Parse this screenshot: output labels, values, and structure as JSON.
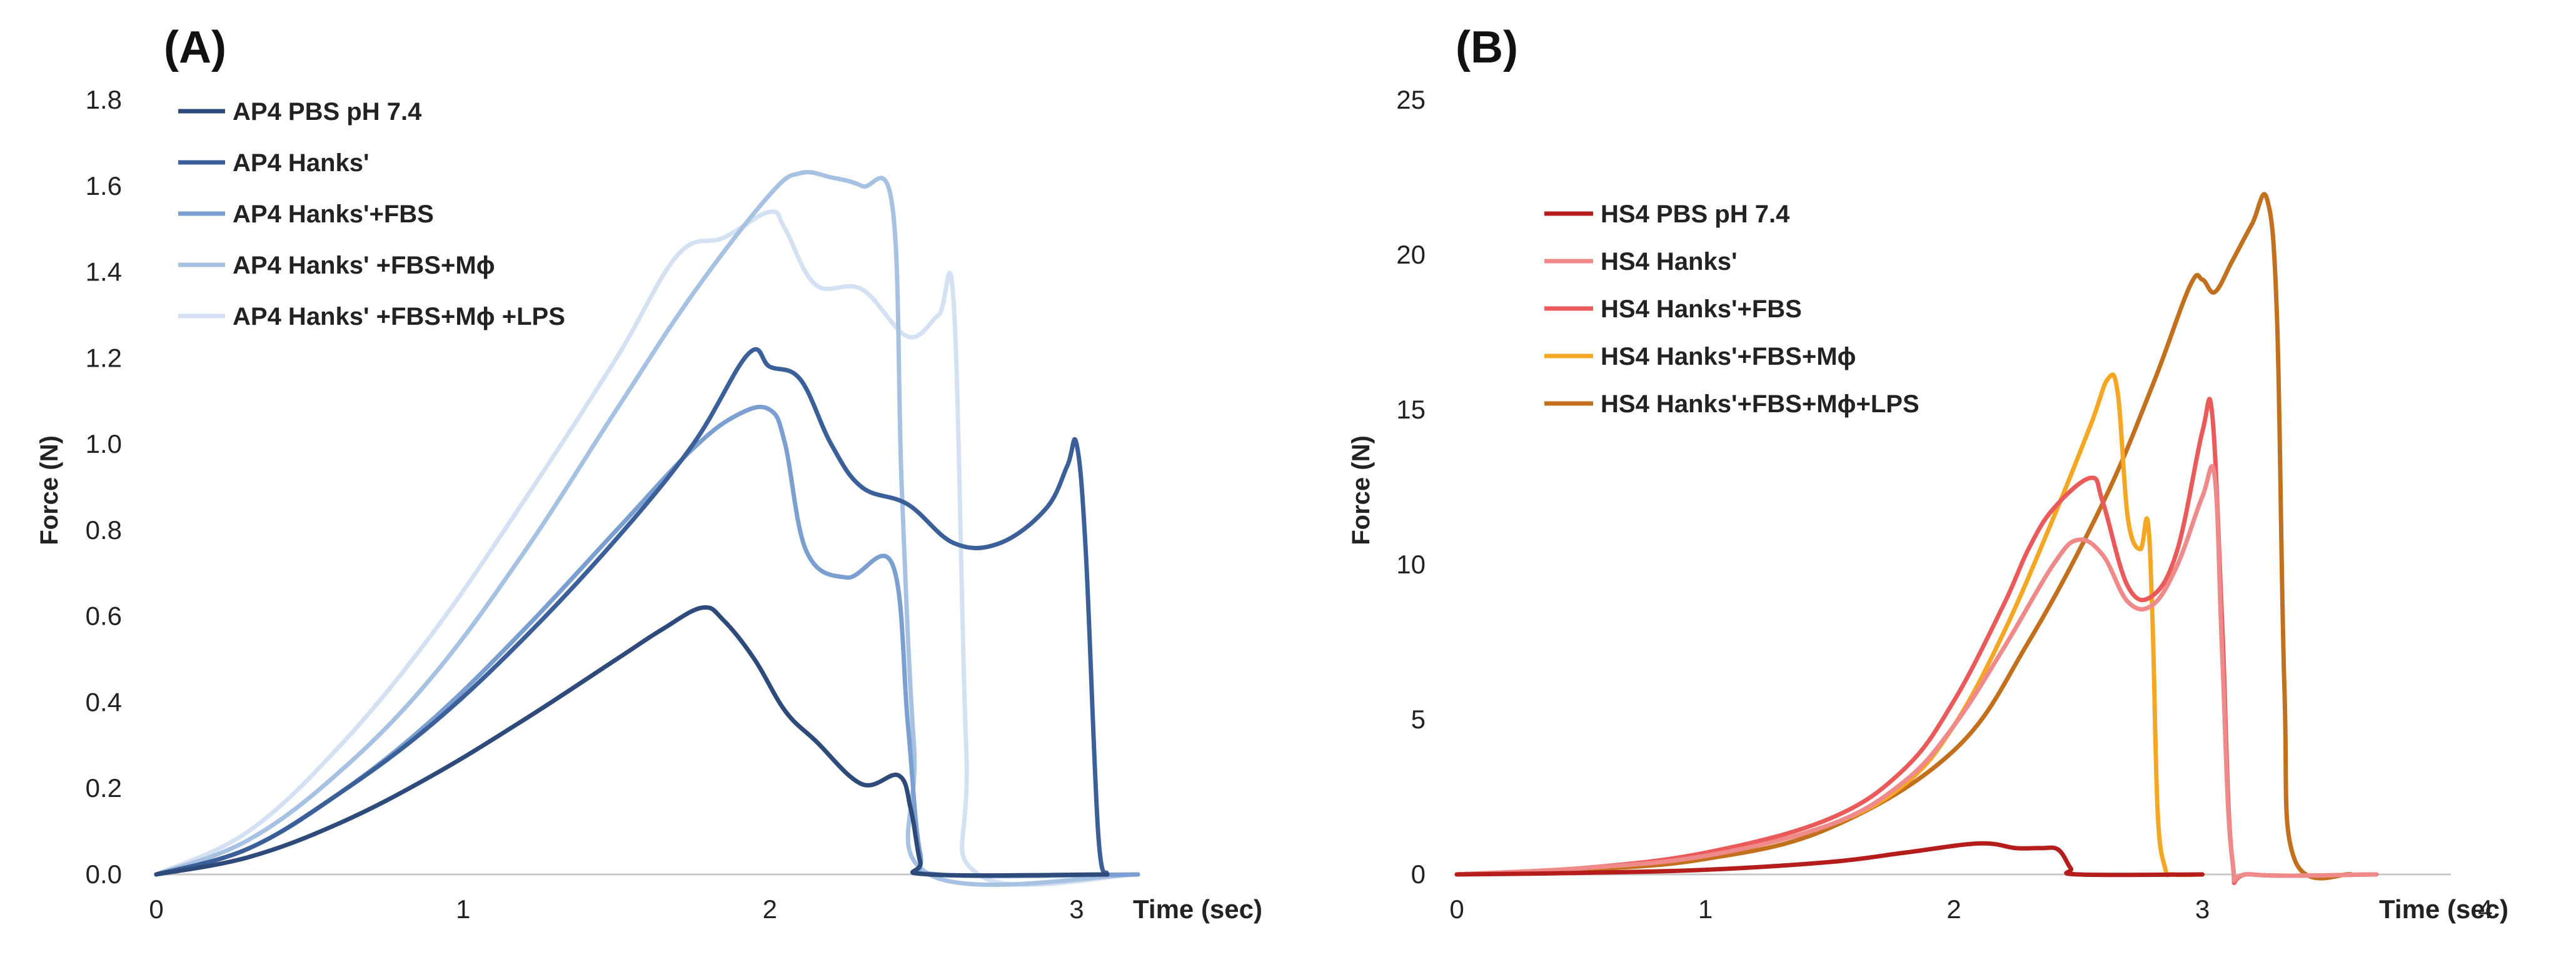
{
  "chart_data": [
    {
      "type": "line",
      "panel_label": "(A)",
      "ylabel": "Force (N)",
      "xlabel": "Time (sec)",
      "xlim": [
        0,
        3.2
      ],
      "ylim": [
        0,
        1.8
      ],
      "xticks": [
        0,
        1,
        2,
        3
      ],
      "yticks": [
        "0.0",
        "0.2",
        "0.4",
        "0.6",
        "0.8",
        "1.0",
        "1.2",
        "1.4",
        "1.6",
        "1.8"
      ],
      "legend_position": "top-left",
      "series": [
        {
          "name": "AP4 PBS pH 7.4",
          "color": "#2e4a7a",
          "x": [
            0,
            0.3,
            0.6,
            0.9,
            1.2,
            1.5,
            1.65,
            1.78,
            1.85,
            1.95,
            2.05,
            2.15,
            2.3,
            2.42,
            2.46,
            2.49,
            2.52,
            3.1
          ],
          "y": [
            0,
            0.04,
            0.12,
            0.23,
            0.36,
            0.5,
            0.57,
            0.62,
            0.59,
            0.5,
            0.38,
            0.31,
            0.21,
            0.23,
            0.15,
            0.03,
            0,
            0
          ]
        },
        {
          "name": "AP4 Hanks'",
          "color": "#3b5f98",
          "x": [
            0,
            0.3,
            0.6,
            0.9,
            1.2,
            1.5,
            1.75,
            1.93,
            2.0,
            2.1,
            2.2,
            2.3,
            2.45,
            2.6,
            2.75,
            2.9,
            2.97,
            3.0,
            3.03,
            3.07,
            3.1
          ],
          "y": [
            0,
            0.06,
            0.19,
            0.35,
            0.55,
            0.78,
            1.0,
            1.21,
            1.18,
            1.15,
            1.0,
            0.9,
            0.86,
            0.77,
            0.77,
            0.85,
            0.95,
            1.0,
            0.75,
            0.1,
            0
          ]
        },
        {
          "name": "AP4 Hanks'+FBS",
          "color": "#7a9fd0",
          "x": [
            0,
            0.3,
            0.6,
            0.9,
            1.2,
            1.5,
            1.75,
            1.9,
            2.0,
            2.05,
            2.12,
            2.25,
            2.4,
            2.45,
            2.49,
            2.55,
            3.2
          ],
          "y": [
            0,
            0.06,
            0.19,
            0.36,
            0.57,
            0.8,
            0.99,
            1.07,
            1.08,
            1.0,
            0.75,
            0.69,
            0.72,
            0.35,
            0.05,
            0,
            0
          ]
        },
        {
          "name": "AP4 Hanks' +FBS+Mϕ",
          "color": "#a7c1e3",
          "x": [
            0,
            0.3,
            0.6,
            0.9,
            1.2,
            1.5,
            1.75,
            2.0,
            2.1,
            2.2,
            2.3,
            2.4,
            2.43,
            2.47,
            2.52,
            3.2
          ],
          "y": [
            0,
            0.08,
            0.24,
            0.46,
            0.75,
            1.08,
            1.35,
            1.58,
            1.63,
            1.62,
            1.6,
            1.55,
            0.9,
            0.3,
            0,
            0
          ]
        },
        {
          "name": "AP4 Hanks' +FBS+Mϕ +LPS",
          "color": "#d3e1f3",
          "x": [
            0,
            0.3,
            0.6,
            0.9,
            1.2,
            1.5,
            1.7,
            1.85,
            2.0,
            2.05,
            2.15,
            2.3,
            2.45,
            2.55,
            2.6,
            2.64,
            2.68,
            3.2
          ],
          "y": [
            0,
            0.1,
            0.3,
            0.56,
            0.87,
            1.2,
            1.44,
            1.48,
            1.54,
            1.5,
            1.37,
            1.36,
            1.25,
            1.3,
            1.32,
            0.3,
            0,
            0
          ]
        }
      ]
    },
    {
      "type": "line",
      "panel_label": "(B)",
      "ylabel": "Force (N)",
      "xlabel": "Time (sec)",
      "xlim": [
        0,
        4
      ],
      "ylim": [
        0,
        25
      ],
      "xticks": [
        0,
        1,
        2,
        3,
        4
      ],
      "yticks": [
        "0",
        "5",
        "10",
        "15",
        "20",
        "25"
      ],
      "legend_position": "top-left",
      "series": [
        {
          "name": "HS4 PBS pH 7.4",
          "color": "#b51d1d",
          "x": [
            0,
            0.5,
            1.0,
            1.5,
            1.8,
            2.1,
            2.25,
            2.35,
            2.42,
            2.47,
            2.5,
            3.0
          ],
          "y": [
            0,
            0.05,
            0.15,
            0.4,
            0.7,
            1.0,
            0.85,
            0.85,
            0.8,
            0.2,
            0,
            0
          ]
        },
        {
          "name": "HS4 Hanks'",
          "color": "#f08a8a",
          "x": [
            0,
            0.5,
            1.0,
            1.5,
            1.8,
            2.0,
            2.2,
            2.4,
            2.5,
            2.6,
            2.7,
            2.8,
            2.9,
            3.0,
            3.05,
            3.08,
            3.12,
            3.2,
            3.7
          ],
          "y": [
            0,
            0.2,
            0.6,
            1.6,
            3.0,
            4.8,
            7.3,
            10.0,
            10.8,
            10.3,
            8.8,
            8.7,
            10.0,
            12.2,
            12.8,
            7.0,
            0.5,
            0,
            0
          ]
        },
        {
          "name": "HS4 Hanks'+FBS",
          "color": "#ea5a5a",
          "x": [
            0,
            0.5,
            1.0,
            1.5,
            1.8,
            2.0,
            2.2,
            2.3,
            2.4,
            2.55,
            2.6,
            2.7,
            2.8,
            2.9,
            3.0,
            3.04,
            3.08,
            3.12,
            3.2,
            3.7
          ],
          "y": [
            0,
            0.2,
            0.7,
            1.8,
            3.4,
            5.6,
            8.7,
            10.5,
            11.8,
            12.8,
            12.0,
            9.3,
            9.0,
            10.5,
            14.3,
            14.8,
            8.0,
            0.5,
            0,
            0
          ]
        },
        {
          "name": "HS4 Hanks'+FBS+Mϕ",
          "color": "#f5a623",
          "x": [
            0,
            0.5,
            1.0,
            1.5,
            1.8,
            2.0,
            2.2,
            2.4,
            2.55,
            2.62,
            2.66,
            2.7,
            2.75,
            2.78,
            2.8,
            2.82,
            2.85,
            2.88,
            3.0
          ],
          "y": [
            0,
            0.2,
            0.6,
            1.6,
            2.9,
            4.8,
            7.8,
            11.5,
            14.5,
            16.0,
            15.5,
            11.5,
            10.5,
            11.4,
            8.0,
            2.0,
            0.2,
            0,
            0
          ]
        },
        {
          "name": "HS4 Hanks'+FBS+Mϕ+LPS",
          "color": "#c2701e",
          "x": [
            0,
            0.5,
            1.0,
            1.5,
            2.0,
            2.3,
            2.6,
            2.8,
            2.95,
            3.0,
            3.05,
            3.12,
            3.2,
            3.26,
            3.3,
            3.33,
            3.37,
            3.6
          ],
          "y": [
            0,
            0.15,
            0.5,
            1.5,
            4.0,
            7.5,
            12.0,
            15.8,
            19.0,
            19.2,
            18.8,
            19.8,
            21.0,
            21.8,
            18.0,
            6.0,
            0.5,
            0
          ]
        }
      ]
    }
  ]
}
